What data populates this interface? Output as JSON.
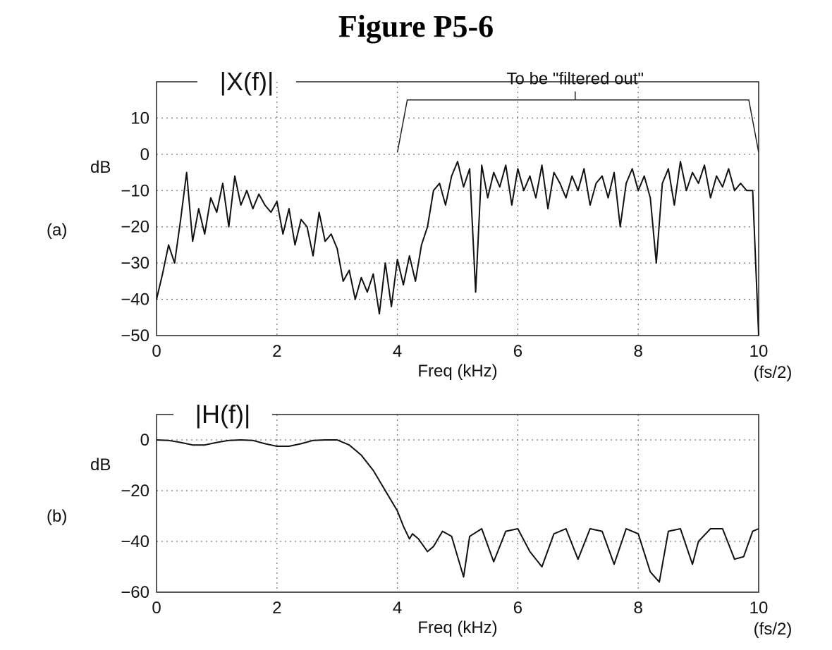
{
  "figure_title": "Figure P5-6",
  "chart_data": [
    {
      "type": "line",
      "panel_label": "(a)",
      "title": "|X(f)|",
      "ylabel": "dB",
      "xlabel": "Freq (kHz)",
      "xlim": [
        0,
        10
      ],
      "ylim": [
        -50,
        20
      ],
      "xticks": [
        0,
        2,
        4,
        6,
        8,
        10
      ],
      "yticks": [
        10,
        0,
        -10,
        -20,
        -30,
        -40,
        -50
      ],
      "ytick_labels": [
        "10",
        "0",
        "−10",
        "−20",
        "−30",
        "−40",
        "−50"
      ],
      "x_end_sublabel": "(fs/2)",
      "grid": true,
      "annotation": {
        "text": "To be \"filtered out\"",
        "x_range": [
          4,
          10
        ]
      },
      "series": [
        {
          "x": [
            0,
            0.1,
            0.2,
            0.3,
            0.4,
            0.5,
            0.6,
            0.7,
            0.8,
            0.9,
            1.0,
            1.1,
            1.2,
            1.3,
            1.4,
            1.5,
            1.6,
            1.7,
            1.8,
            1.9,
            2.0,
            2.1,
            2.2,
            2.3,
            2.4,
            2.5,
            2.6,
            2.7,
            2.8,
            2.9,
            3.0,
            3.1,
            3.2,
            3.3,
            3.4,
            3.5,
            3.6,
            3.7,
            3.8,
            3.9,
            4.0,
            4.1,
            4.2,
            4.3,
            4.4,
            4.5,
            4.6,
            4.7,
            4.8,
            4.9,
            5.0,
            5.1,
            5.2,
            5.3,
            5.4,
            5.5,
            5.6,
            5.7,
            5.8,
            5.9,
            6.0,
            6.1,
            6.2,
            6.3,
            6.4,
            6.5,
            6.6,
            6.7,
            6.8,
            6.9,
            7.0,
            7.1,
            7.2,
            7.3,
            7.4,
            7.5,
            7.6,
            7.7,
            7.8,
            7.9,
            8.0,
            8.1,
            8.2,
            8.3,
            8.4,
            8.5,
            8.6,
            8.7,
            8.8,
            8.9,
            9.0,
            9.1,
            9.2,
            9.3,
            9.4,
            9.5,
            9.6,
            9.7,
            9.8,
            9.9,
            10.0
          ],
          "values": [
            -40,
            -33,
            -25,
            -30,
            -18,
            -5,
            -24,
            -15,
            -22,
            -12,
            -16,
            -8,
            -20,
            -6,
            -14,
            -10,
            -15,
            -11,
            -14,
            -16,
            -13,
            -22,
            -15,
            -25,
            -18,
            -20,
            -28,
            -16,
            -24,
            -22,
            -26,
            -35,
            -32,
            -40,
            -34,
            -38,
            -33,
            -44,
            -30,
            -42,
            -29,
            -36,
            -28,
            -35,
            -25,
            -20,
            -10,
            -8,
            -14,
            -6,
            -2,
            -9,
            -4,
            -38,
            -3,
            -12,
            -5,
            -9,
            -3,
            -14,
            -4,
            -10,
            -6,
            -12,
            -3,
            -15,
            -5,
            -8,
            -12,
            -6,
            -10,
            -4,
            -14,
            -8,
            -6,
            -12,
            -5,
            -20,
            -8,
            -4,
            -10,
            -6,
            -12,
            -30,
            -8,
            -4,
            -14,
            -2,
            -10,
            -5,
            -8,
            -3,
            -12,
            -6,
            -9,
            -4,
            -10,
            -8,
            -10,
            -10,
            -50
          ]
        }
      ]
    },
    {
      "type": "line",
      "panel_label": "(b)",
      "title": "|H(f)|",
      "ylabel": "dB",
      "xlabel": "Freq (kHz)",
      "xlim": [
        0,
        10
      ],
      "ylim": [
        -60,
        10
      ],
      "xticks": [
        0,
        2,
        4,
        6,
        8,
        10
      ],
      "yticks": [
        0,
        -20,
        -40,
        -60
      ],
      "ytick_labels": [
        "0",
        "−20",
        "−40",
        "−60"
      ],
      "x_end_sublabel": "(fs/2)",
      "grid": true,
      "series": [
        {
          "x": [
            0,
            0.2,
            0.4,
            0.6,
            0.8,
            1.0,
            1.2,
            1.4,
            1.6,
            1.8,
            2.0,
            2.2,
            2.4,
            2.6,
            2.8,
            3.0,
            3.2,
            3.4,
            3.6,
            3.8,
            4.0,
            4.1,
            4.2,
            4.25,
            4.35,
            4.5,
            4.6,
            4.75,
            4.9,
            5.0,
            5.1,
            5.2,
            5.4,
            5.6,
            5.8,
            6.0,
            6.2,
            6.4,
            6.6,
            6.8,
            7.0,
            7.2,
            7.4,
            7.6,
            7.8,
            8.0,
            8.2,
            8.35,
            8.5,
            8.7,
            8.9,
            9.0,
            9.2,
            9.4,
            9.6,
            9.75,
            9.9,
            10.0
          ],
          "values": [
            0,
            -0.2,
            -1.0,
            -2.0,
            -2.0,
            -1.0,
            -0.2,
            0,
            -0.2,
            -1.5,
            -2.5,
            -2.5,
            -1.5,
            -0.2,
            0,
            0,
            -2,
            -6,
            -12,
            -20,
            -28,
            -34,
            -39,
            -37,
            -39,
            -44,
            -42,
            -36,
            -38,
            -46,
            -54,
            -38,
            -35,
            -48,
            -36,
            -35,
            -44,
            -50,
            -37,
            -35,
            -47,
            -35,
            -36,
            -49,
            -35,
            -37,
            -52,
            -56,
            -36,
            -35,
            -49,
            -40,
            -35,
            -35,
            -47,
            -46,
            -36,
            -35
          ]
        }
      ]
    }
  ]
}
